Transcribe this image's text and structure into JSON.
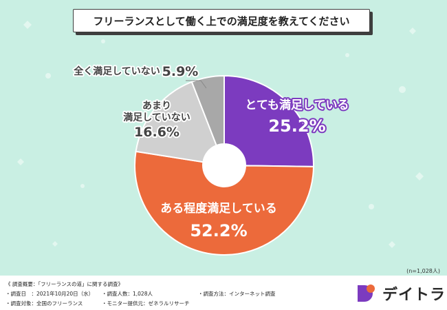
{
  "title": "フリーランスとして働く上での満足度を教えてください",
  "chart_data": {
    "type": "pie",
    "subtype": "donut",
    "categories": [
      "とても満足している",
      "ある程度満足している",
      "あまり満足していない",
      "全く満足していない"
    ],
    "values": [
      25.2,
      52.2,
      16.6,
      5.9
    ],
    "value_labels": [
      "25.2%",
      "52.2%",
      "16.6%",
      "5.9%"
    ],
    "colors": [
      "#7c3bbf",
      "#ec6a3b",
      "#d0d0d0",
      "#a8a8a8"
    ],
    "label_lines": [
      [
        "とても満足している"
      ],
      [
        "ある程度満足している"
      ],
      [
        "あまり",
        "満足していない"
      ],
      [
        "全く満足していない"
      ]
    ],
    "start": "12 o'clock",
    "direction": "clockwise"
  },
  "note": "(n=1,028人)",
  "footer": {
    "heading": "《 調査概要：「フリーランスの道」に関する調査》",
    "items": [
      "・調査日　：2021年10月20日（水）",
      "・調査人数：1,028人",
      "・調査方法：インターネット調査",
      "・調査対象：全国のフリーランス",
      "・モニター提供元：ゼネラルリサーチ"
    ]
  },
  "logo": {
    "text": "デイトラ",
    "colors": [
      "#7c3bbf",
      "#ec6a3b"
    ]
  }
}
